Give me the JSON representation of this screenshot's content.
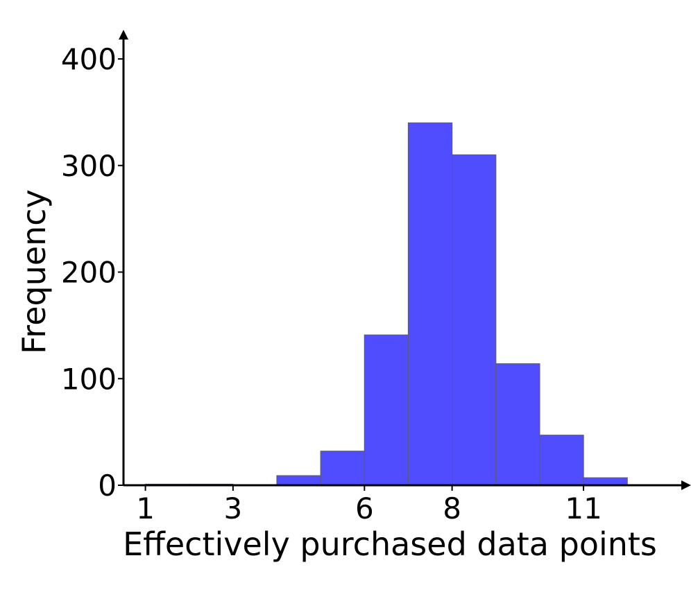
{
  "chart_data": {
    "type": "bar",
    "xlabel": "Effectively purchased data points",
    "ylabel": "Frequency",
    "x_ticks": [
      1,
      3,
      6,
      8,
      11
    ],
    "y_ticks": [
      0,
      100,
      200,
      300,
      400
    ],
    "xlim": [
      0.5,
      13.2
    ],
    "ylim": [
      0,
      400
    ],
    "bins": [
      {
        "start": 1.0,
        "end": 2.0,
        "value": 1
      },
      {
        "start": 2.0,
        "end": 3.0,
        "value": 1
      },
      {
        "start": 3.0,
        "end": 4.0,
        "value": 0
      },
      {
        "start": 4.0,
        "end": 5.0,
        "value": 9
      },
      {
        "start": 5.0,
        "end": 6.0,
        "value": 32
      },
      {
        "start": 6.0,
        "end": 7.0,
        "value": 141
      },
      {
        "start": 7.0,
        "end": 8.0,
        "value": 340
      },
      {
        "start": 8.0,
        "end": 9.0,
        "value": 310
      },
      {
        "start": 9.0,
        "end": 10.0,
        "value": 114
      },
      {
        "start": 10.0,
        "end": 11.0,
        "value": 47
      },
      {
        "start": 11.0,
        "end": 12.0,
        "value": 7
      }
    ],
    "bar_color": "#4f4dff",
    "bar_edge_color": "#5a5a78",
    "grid": false,
    "legend": "none"
  }
}
